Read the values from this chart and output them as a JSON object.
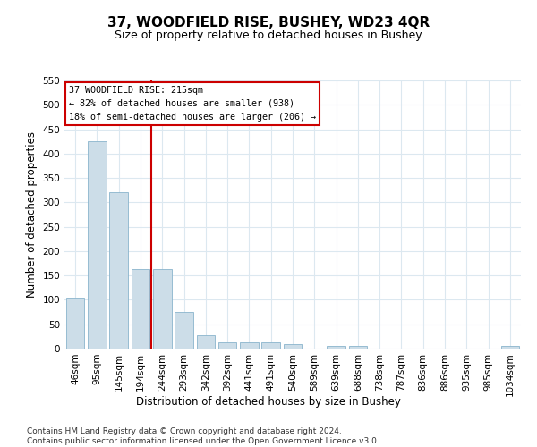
{
  "title": "37, WOODFIELD RISE, BUSHEY, WD23 4QR",
  "subtitle": "Size of property relative to detached houses in Bushey",
  "xlabel": "Distribution of detached houses by size in Bushey",
  "ylabel": "Number of detached properties",
  "bar_labels": [
    "46sqm",
    "95sqm",
    "145sqm",
    "194sqm",
    "244sqm",
    "293sqm",
    "342sqm",
    "392sqm",
    "441sqm",
    "491sqm",
    "540sqm",
    "589sqm",
    "639sqm",
    "688sqm",
    "738sqm",
    "787sqm",
    "836sqm",
    "886sqm",
    "935sqm",
    "985sqm",
    "1034sqm"
  ],
  "bar_values": [
    105,
    425,
    320,
    163,
    163,
    75,
    27,
    13,
    13,
    13,
    9,
    0,
    5,
    5,
    0,
    0,
    0,
    0,
    0,
    0,
    5
  ],
  "bar_color": "#ccdde8",
  "bar_edge_color": "#8ab4cc",
  "vline_x_index": 3.5,
  "vline_color": "#cc0000",
  "annotation_text": "37 WOODFIELD RISE: 215sqm\n← 82% of detached houses are smaller (938)\n18% of semi-detached houses are larger (206) →",
  "annotation_box_color": "#cc0000",
  "ylim": [
    0,
    550
  ],
  "yticks": [
    0,
    50,
    100,
    150,
    200,
    250,
    300,
    350,
    400,
    450,
    500,
    550
  ],
  "footer": "Contains HM Land Registry data © Crown copyright and database right 2024.\nContains public sector information licensed under the Open Government Licence v3.0.",
  "bg_color": "#ffffff",
  "plot_bg_color": "#ffffff",
  "grid_color": "#dce8f0",
  "title_fontsize": 11,
  "subtitle_fontsize": 9,
  "axis_label_fontsize": 8.5,
  "tick_fontsize": 7.5,
  "footer_fontsize": 6.5
}
